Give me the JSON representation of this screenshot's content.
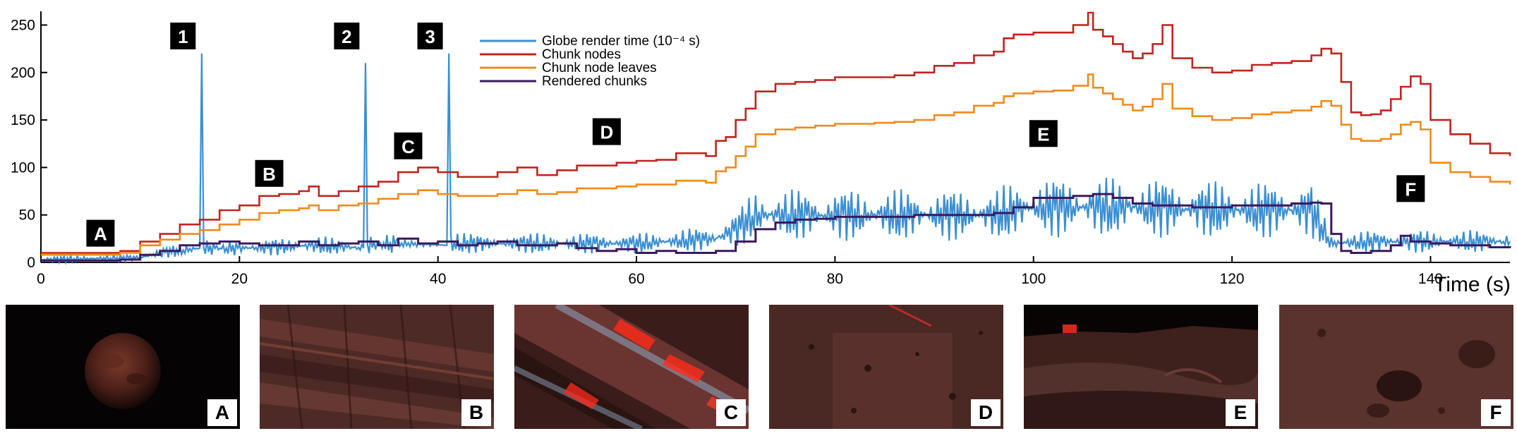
{
  "chart_data": {
    "type": "line",
    "title": "",
    "xlabel": "Time (s)",
    "ylabel": "",
    "xlim": [
      0,
      148
    ],
    "ylim": [
      0,
      260
    ],
    "x_ticks": [
      0,
      20,
      40,
      60,
      80,
      100,
      120,
      140
    ],
    "y_ticks": [
      0,
      50,
      100,
      150,
      200,
      250
    ],
    "grid": false,
    "legend_position": "top-center",
    "series": [
      {
        "name": "Globe render time (10⁻⁴ s)",
        "color": "#3b8fd2",
        "x": [
          0,
          10,
          12,
          16,
          16.2,
          16.4,
          20,
          28,
          32.5,
          32.7,
          32.9,
          36,
          40.9,
          41.1,
          41.3,
          50,
          60,
          68,
          70,
          72,
          80,
          90,
          96,
          98,
          100,
          110,
          120,
          128,
          130,
          135,
          140,
          148
        ],
        "y": [
          3,
          5,
          10,
          15,
          220,
          15,
          15,
          18,
          15,
          210,
          18,
          20,
          18,
          220,
          20,
          20,
          20,
          25,
          35,
          50,
          50,
          50,
          50,
          55,
          58,
          58,
          55,
          55,
          20,
          22,
          22,
          22
        ]
      },
      {
        "name": "Chunk nodes",
        "color": "#c0251e",
        "x": [
          0,
          5,
          8,
          10,
          12,
          14,
          16,
          18,
          20,
          22,
          24,
          26,
          27,
          28,
          30,
          32,
          34,
          36,
          38,
          40,
          42,
          44,
          46,
          48,
          50,
          52,
          54,
          56,
          58,
          60,
          62,
          64,
          66,
          67,
          68,
          69,
          70,
          71,
          72,
          74,
          76,
          78,
          80,
          82,
          84,
          86,
          88,
          90,
          92,
          94,
          96,
          97,
          98,
          100,
          102,
          104,
          105.5,
          106,
          107,
          108,
          109,
          110,
          111,
          112,
          113,
          114,
          116,
          118,
          120,
          122,
          124,
          126,
          128,
          129,
          130,
          131,
          132,
          133,
          134,
          135,
          136,
          137,
          138,
          139,
          140,
          142,
          144,
          146,
          148
        ],
        "y": [
          10,
          10,
          12,
          22,
          30,
          40,
          45,
          55,
          60,
          70,
          72,
          75,
          80,
          70,
          75,
          80,
          85,
          95,
          100,
          95,
          90,
          90,
          95,
          100,
          92,
          97,
          102,
          102,
          105,
          107,
          108,
          115,
          115,
          112,
          128,
          132,
          150,
          162,
          180,
          188,
          190,
          192,
          195,
          195,
          195,
          197,
          200,
          207,
          210,
          218,
          222,
          236,
          240,
          242,
          242,
          250,
          263,
          245,
          238,
          230,
          222,
          215,
          220,
          230,
          250,
          215,
          205,
          200,
          202,
          208,
          210,
          212,
          218,
          225,
          220,
          190,
          158,
          155,
          156,
          160,
          172,
          185,
          196,
          188,
          150,
          135,
          125,
          115,
          112
        ]
      },
      {
        "name": "Chunk node leaves",
        "color": "#f08a1c",
        "x": [
          0,
          5,
          8,
          10,
          12,
          14,
          16,
          18,
          20,
          22,
          24,
          26,
          27,
          28,
          30,
          32,
          34,
          36,
          38,
          40,
          42,
          44,
          46,
          48,
          50,
          52,
          54,
          56,
          58,
          60,
          62,
          64,
          66,
          67,
          68,
          69,
          70,
          71,
          72,
          74,
          76,
          78,
          80,
          82,
          84,
          86,
          88,
          90,
          92,
          94,
          96,
          97,
          98,
          100,
          102,
          104,
          105.5,
          106,
          107,
          108,
          109,
          110,
          111,
          112,
          113,
          114,
          116,
          118,
          120,
          122,
          124,
          126,
          128,
          129,
          130,
          131,
          132,
          133,
          134,
          135,
          136,
          137,
          138,
          139,
          140,
          142,
          144,
          146,
          148
        ],
        "y": [
          8,
          8,
          10,
          18,
          24,
          30,
          34,
          40,
          45,
          52,
          55,
          57,
          60,
          55,
          60,
          62,
          67,
          72,
          76,
          72,
          70,
          70,
          72,
          76,
          72,
          74,
          78,
          78,
          80,
          82,
          82,
          86,
          86,
          84,
          96,
          100,
          112,
          122,
          135,
          140,
          142,
          144,
          146,
          146,
          147,
          148,
          150,
          155,
          158,
          165,
          168,
          175,
          178,
          180,
          181,
          186,
          198,
          184,
          178,
          172,
          166,
          160,
          164,
          172,
          188,
          162,
          154,
          150,
          152,
          156,
          158,
          160,
          164,
          170,
          165,
          145,
          130,
          128,
          128,
          130,
          135,
          145,
          148,
          140,
          105,
          95,
          90,
          85,
          82
        ]
      },
      {
        "name": "Rendered chunks",
        "color": "#3a1a5e",
        "x": [
          0,
          8,
          10,
          12,
          14,
          16,
          18,
          20,
          22,
          24,
          26,
          28,
          30,
          32,
          34,
          36,
          38,
          40,
          42,
          44,
          46,
          48,
          50,
          52,
          54,
          56,
          58,
          60,
          62,
          64,
          66,
          68,
          70,
          72,
          74,
          76,
          78,
          80,
          84,
          88,
          92,
          96,
          98,
          100,
          104,
          106,
          108,
          110,
          112,
          116,
          120,
          124,
          126,
          128,
          129,
          130,
          131,
          132,
          134,
          136,
          137,
          138,
          140,
          142,
          144,
          146,
          148
        ],
        "y": [
          2,
          3,
          8,
          12,
          18,
          20,
          22,
          20,
          18,
          18,
          22,
          18,
          20,
          22,
          18,
          25,
          20,
          22,
          18,
          20,
          22,
          18,
          18,
          20,
          15,
          12,
          14,
          10,
          12,
          10,
          10,
          12,
          22,
          35,
          42,
          45,
          46,
          48,
          48,
          50,
          50,
          52,
          58,
          68,
          70,
          72,
          68,
          62,
          60,
          58,
          60,
          60,
          62,
          63,
          62,
          30,
          12,
          10,
          12,
          18,
          28,
          22,
          20,
          18,
          18,
          16,
          15
        ]
      }
    ],
    "event_markers": [
      {
        "label": "1",
        "x": 16.3
      },
      {
        "label": "2",
        "x": 32.8
      },
      {
        "label": "3",
        "x": 41.2
      }
    ],
    "annotations": [
      {
        "label": "A",
        "x": 6,
        "y": 30
      },
      {
        "label": "B",
        "x": 23,
        "y": 93
      },
      {
        "label": "C",
        "x": 37,
        "y": 122
      },
      {
        "label": "D",
        "x": 57,
        "y": 137
      },
      {
        "label": "E",
        "x": 101,
        "y": 135
      },
      {
        "label": "F",
        "x": 138,
        "y": 77
      }
    ]
  },
  "thumbnails": [
    {
      "label": "A",
      "scene": "globe"
    },
    {
      "label": "B",
      "scene": "ridges"
    },
    {
      "label": "C",
      "scene": "canyon"
    },
    {
      "label": "D",
      "scene": "crater-field"
    },
    {
      "label": "E",
      "scene": "horizon"
    },
    {
      "label": "F",
      "scene": "craters"
    }
  ]
}
